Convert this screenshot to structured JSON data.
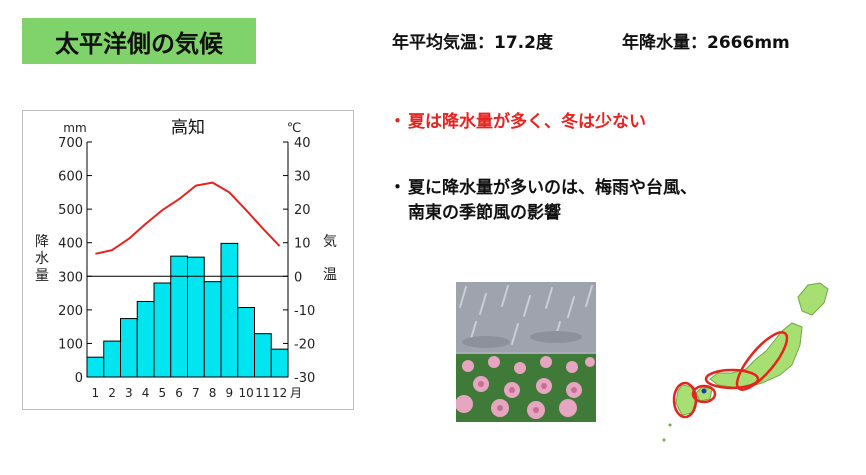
{
  "header": {
    "title": "太平洋側の気候",
    "annual_temp": "年平均気温：17.2度",
    "annual_rain": "年降水量：2666mm"
  },
  "bullets": {
    "point1": "夏は降水量が多く、冬は少ない",
    "point2_line1": "夏に降水量が多いのは、梅雨や台風、",
    "point2_line2": "南東の季節風の影響"
  },
  "colors": {
    "title_bg": "#7fd36a",
    "emphasis": "#e8231e",
    "bar_fill": "#00e5f0",
    "temp_line": "#e8231e"
  },
  "images": {
    "rain_scene": "rainy-flower-field-illustration",
    "map": "japan-map-pacific-side-highlighted"
  },
  "chart_data": {
    "type": "bar",
    "title": "高知",
    "categories": [
      "1",
      "2",
      "3",
      "4",
      "5",
      "6",
      "7",
      "8",
      "9",
      "10",
      "11",
      "12"
    ],
    "x_suffix": "月",
    "series": [
      {
        "kind": "bar",
        "axis": "left",
        "values": [
          59,
          107,
          174,
          225,
          280,
          360,
          357,
          284,
          398,
          207,
          129,
          83
        ]
      },
      {
        "kind": "line",
        "axis": "right",
        "values": [
          6.7,
          7.8,
          11.2,
          15.6,
          19.7,
          23.0,
          27.0,
          27.9,
          25.0,
          19.7,
          14.2,
          9.0
        ]
      }
    ],
    "y_left": {
      "unit": "mm",
      "label": "降水量",
      "ylim": [
        0,
        700
      ],
      "ticks": [
        0,
        100,
        200,
        300,
        400,
        500,
        600,
        700
      ]
    },
    "y_right": {
      "unit": "℃",
      "label": "気温",
      "ylim": [
        -30,
        40
      ],
      "ticks": [
        -30,
        -20,
        -10,
        0,
        10,
        20,
        30,
        40
      ]
    },
    "grid": false
  }
}
